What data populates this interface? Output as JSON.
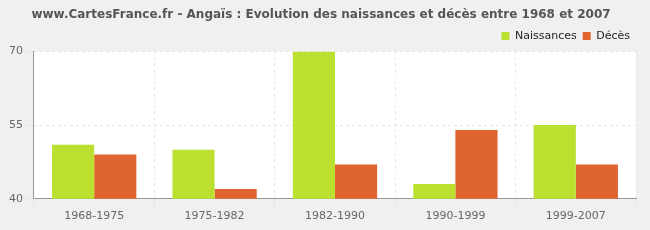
{
  "chart_data": {
    "type": "bar",
    "title": "www.CartesFrance.fr - Angaïs : Evolution des naissances et décès entre 1968 et 2007",
    "categories": [
      "1968-1975",
      "1975-1982",
      "1982-1990",
      "1990-1999",
      "1999-2007"
    ],
    "series": [
      {
        "name": "Naissances",
        "color": "#bbe02f",
        "values": [
          51,
          50,
          70,
          43,
          55
        ]
      },
      {
        "name": "Décès",
        "color": "#e0642f",
        "values": [
          49,
          42,
          47,
          54,
          47
        ]
      }
    ],
    "ylim": [
      40,
      70
    ],
    "yticks": [
      40,
      55,
      70
    ],
    "grid": true,
    "legend": "top-right"
  }
}
